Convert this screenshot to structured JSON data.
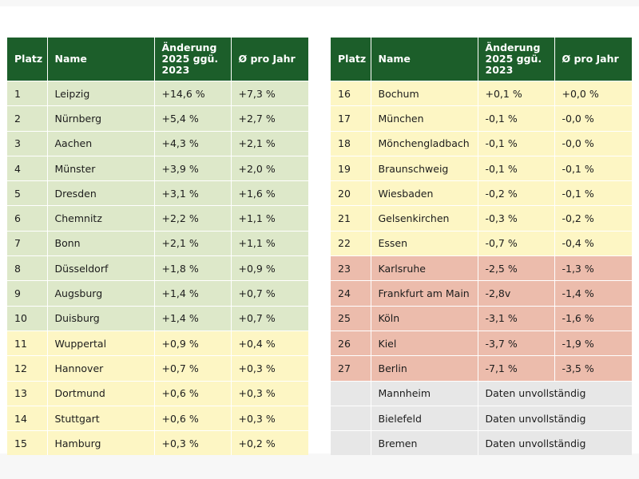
{
  "headers": {
    "platz": "Platz",
    "name": "Name",
    "change_l1": "Änderung",
    "change_l2": "2025 ggü.",
    "change_l3": "2023",
    "avg": "Ø pro Jahr"
  },
  "colors": {
    "header": "#1c5e2a",
    "green": "#dde8c9",
    "yellow": "#fdf6c4",
    "red": "#ecbcac",
    "gray": "#e7e7e7"
  },
  "left_rows": [
    {
      "platz": "1",
      "name": "Leipzig",
      "change": "+14,6 %",
      "avg": "+7,3 %",
      "band": "green"
    },
    {
      "platz": "2",
      "name": "Nürnberg",
      "change": "+5,4 %",
      "avg": "+2,7 %",
      "band": "green"
    },
    {
      "platz": "3",
      "name": "Aachen",
      "change": "+4,3 %",
      "avg": "+2,1 %",
      "band": "green"
    },
    {
      "platz": "4",
      "name": "Münster",
      "change": "+3,9 %",
      "avg": "+2,0 %",
      "band": "green"
    },
    {
      "platz": "5",
      "name": "Dresden",
      "change": "+3,1 %",
      "avg": "+1,6 %",
      "band": "green"
    },
    {
      "platz": "6",
      "name": "Chemnitz",
      "change": "+2,2 %",
      "avg": "+1,1 %",
      "band": "green"
    },
    {
      "platz": "7",
      "name": "Bonn",
      "change": "+2,1 %",
      "avg": "+1,1 %",
      "band": "green"
    },
    {
      "platz": "8",
      "name": "Düsseldorf",
      "change": "+1,8 %",
      "avg": "+0,9 %",
      "band": "green"
    },
    {
      "platz": "9",
      "name": "Augsburg",
      "change": "+1,4 %",
      "avg": "+0,7 %",
      "band": "green"
    },
    {
      "platz": "10",
      "name": "Duisburg",
      "change": "+1,4 %",
      "avg": "+0,7 %",
      "band": "green"
    },
    {
      "platz": "11",
      "name": "Wuppertal",
      "change": "+0,9 %",
      "avg": "+0,4 %",
      "band": "yellow"
    },
    {
      "platz": "12",
      "name": "Hannover",
      "change": "+0,7 %",
      "avg": "+0,3 %",
      "band": "yellow"
    },
    {
      "platz": "13",
      "name": "Dortmund",
      "change": "+0,6 %",
      "avg": "+0,3 %",
      "band": "yellow"
    },
    {
      "platz": "14",
      "name": "Stuttgart",
      "change": "+0,6 %",
      "avg": "+0,3 %",
      "band": "yellow"
    },
    {
      "platz": "15",
      "name": "Hamburg",
      "change": "+0,3 %",
      "avg": "+0,2 %",
      "band": "yellow"
    }
  ],
  "right_rows": [
    {
      "platz": "16",
      "name": "Bochum",
      "change": "+0,1 %",
      "avg": "+0,0 %",
      "band": "yellow"
    },
    {
      "platz": "17",
      "name": "München",
      "change": "-0,1 %",
      "avg": "-0,0 %",
      "band": "yellow"
    },
    {
      "platz": "18",
      "name": "Mönchengladbach",
      "change": "-0,1 %",
      "avg": "-0,0 %",
      "band": "yellow"
    },
    {
      "platz": "19",
      "name": "Braunschweig",
      "change": "-0,1 %",
      "avg": "-0,1 %",
      "band": "yellow"
    },
    {
      "platz": "20",
      "name": "Wiesbaden",
      "change": "-0,2 %",
      "avg": "-0,1 %",
      "band": "yellow"
    },
    {
      "platz": "21",
      "name": "Gelsenkirchen",
      "change": "-0,3 %",
      "avg": "-0,2 %",
      "band": "yellow"
    },
    {
      "platz": "22",
      "name": "Essen",
      "change": "-0,7 %",
      "avg": "-0,4 %",
      "band": "yellow"
    },
    {
      "platz": "23",
      "name": "Karlsruhe",
      "change": "-2,5 %",
      "avg": "-1,3 %",
      "band": "red"
    },
    {
      "platz": "24",
      "name": "Frankfurt am Main",
      "change": "-2,8v",
      "avg": "-1,4 %",
      "band": "red"
    },
    {
      "platz": "25",
      "name": "Köln",
      "change": "-3,1 %",
      "avg": "-1,6 %",
      "band": "red"
    },
    {
      "platz": "26",
      "name": "Kiel",
      "change": "-3,7 %",
      "avg": "-1,9 %",
      "band": "red"
    },
    {
      "platz": "27",
      "name": "Berlin",
      "change": "-7,1 %",
      "avg": "-3,5 %",
      "band": "red"
    }
  ],
  "incomplete_rows": [
    {
      "platz": "",
      "name": "Mannheim",
      "note": "Daten unvollständig",
      "band": "gray"
    },
    {
      "platz": "",
      "name": "Bielefeld",
      "note": "Daten unvollständig",
      "band": "gray"
    },
    {
      "platz": "",
      "name": "Bremen",
      "note": "Daten unvollständig",
      "band": "gray"
    }
  ]
}
